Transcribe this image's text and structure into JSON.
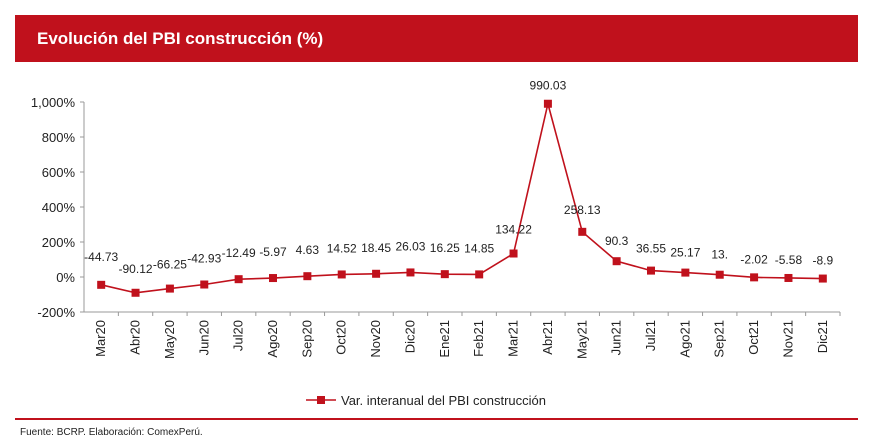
{
  "header": {
    "title": "Evolución del PBI construcción (%)"
  },
  "footer": {
    "source": "Fuente: BCRP. Elaboración: ComexPerú."
  },
  "colors": {
    "accent": "#c0111c"
  },
  "chart_data": {
    "type": "line",
    "title": "Evolución del PBI construcción (%)",
    "categories": [
      "Mar20",
      "Abr20",
      "May20",
      "Jun20",
      "Jul20",
      "Ago20",
      "Sep20",
      "Oct20",
      "Nov20",
      "Dic20",
      "Ene21",
      "Feb21",
      "Mar21",
      "Abr21",
      "May21",
      "Jun21",
      "Jul21",
      "Ago21",
      "Sep21",
      "Oct21",
      "Nov21",
      "Dic21"
    ],
    "series": [
      {
        "name": "Var. interanual del PBI construcción",
        "values": [
          -44.73,
          -90.12,
          -66.25,
          -42.93,
          -12.49,
          -5.97,
          4.63,
          14.52,
          18.45,
          26.03,
          16.25,
          14.85,
          134.22,
          990.03,
          258.13,
          90.3,
          36.55,
          25.17,
          13,
          -2.02,
          -5.58,
          -8.9
        ],
        "labels": [
          "-44.73",
          "-90.12",
          "-66.25",
          "-42.93",
          "-12.49",
          "-5.97",
          "4.63",
          "14.52",
          "18.45",
          "26.03",
          "16.25",
          "14.85",
          "134.22",
          "990.03",
          "258.13",
          "90.3",
          "36.55",
          "25.17",
          "13.",
          "-2.02",
          "-5.58",
          "-8.9"
        ]
      }
    ],
    "ylim": [
      -200,
      1000
    ],
    "yticks": [
      -200,
      0,
      200,
      400,
      600,
      800,
      1000
    ],
    "ytick_labels": [
      "-200%",
      "0%",
      "200%",
      "400%",
      "600%",
      "800%",
      "1,000%"
    ],
    "grid": false,
    "legend": "bottom"
  }
}
